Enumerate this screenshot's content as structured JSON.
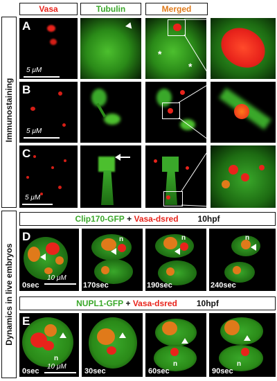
{
  "headers": {
    "vasa": "Vasa",
    "tubulin": "Tubulin",
    "merged": "Merged"
  },
  "colors": {
    "red": "#e8231b",
    "green": "#4cbf2e",
    "orange": "#e07a1a",
    "dark": "#111111"
  },
  "side_labels": {
    "top": "Immunostaining",
    "bottom": "Dynamics in live embryos"
  },
  "rows": {
    "a": "A",
    "b": "B",
    "c": "C"
  },
  "scale": {
    "um5": "5 μM",
    "um10": "10 μM"
  },
  "banner_d": {
    "part1": "Clip170-GFP",
    "plus": " + ",
    "part2": "Vasa-dsred",
    "time": "10hpf"
  },
  "banner_e": {
    "part1": "NUPL1-GFP",
    "plus": " + ",
    "part2": "Vasa-dsred",
    "time": "10hpf"
  },
  "panel_d": {
    "letter": "D",
    "times": [
      "0sec",
      "170sec",
      "190sec",
      "240sec"
    ],
    "n": "n"
  },
  "panel_e": {
    "letter": "E",
    "times": [
      "0sec",
      "30sec",
      "60sec",
      "90sec"
    ],
    "n": "n"
  },
  "asterisk": "*"
}
